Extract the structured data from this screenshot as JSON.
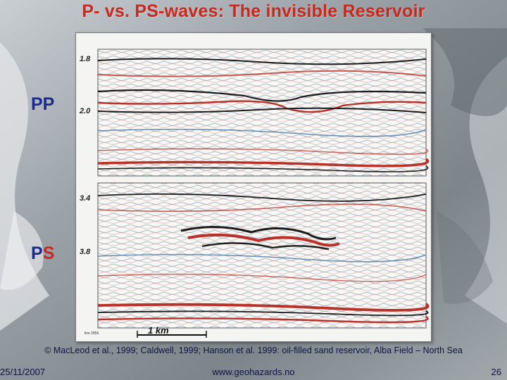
{
  "slide": {
    "title": "P- vs. PS-waves: The invisible Reservoir",
    "pp_label_p1": "PP",
    "ps_label_p": "P",
    "ps_label_s": "S",
    "pp_ticks": [
      "1.8",
      "2.0"
    ],
    "ps_ticks": [
      "3.4",
      "3.8"
    ],
    "scale_bar": "1 km",
    "line_label": "line 2856",
    "credit": "© MacLeod et al., 1999; Caldwell, 1999; Hanson et al. 1999: oil-filled sand reservoir, Alba Field – North Sea",
    "date": "25/11/2007",
    "url": "www.geohazards.no",
    "page_number": "26"
  },
  "colors": {
    "title": "#c8281e",
    "pp_label": "#1a2a8c",
    "ps_p": "#1a2a8c",
    "ps_s": "#c8281e",
    "seismic_red": "#b8322a",
    "seismic_black": "#1a1a1a"
  }
}
